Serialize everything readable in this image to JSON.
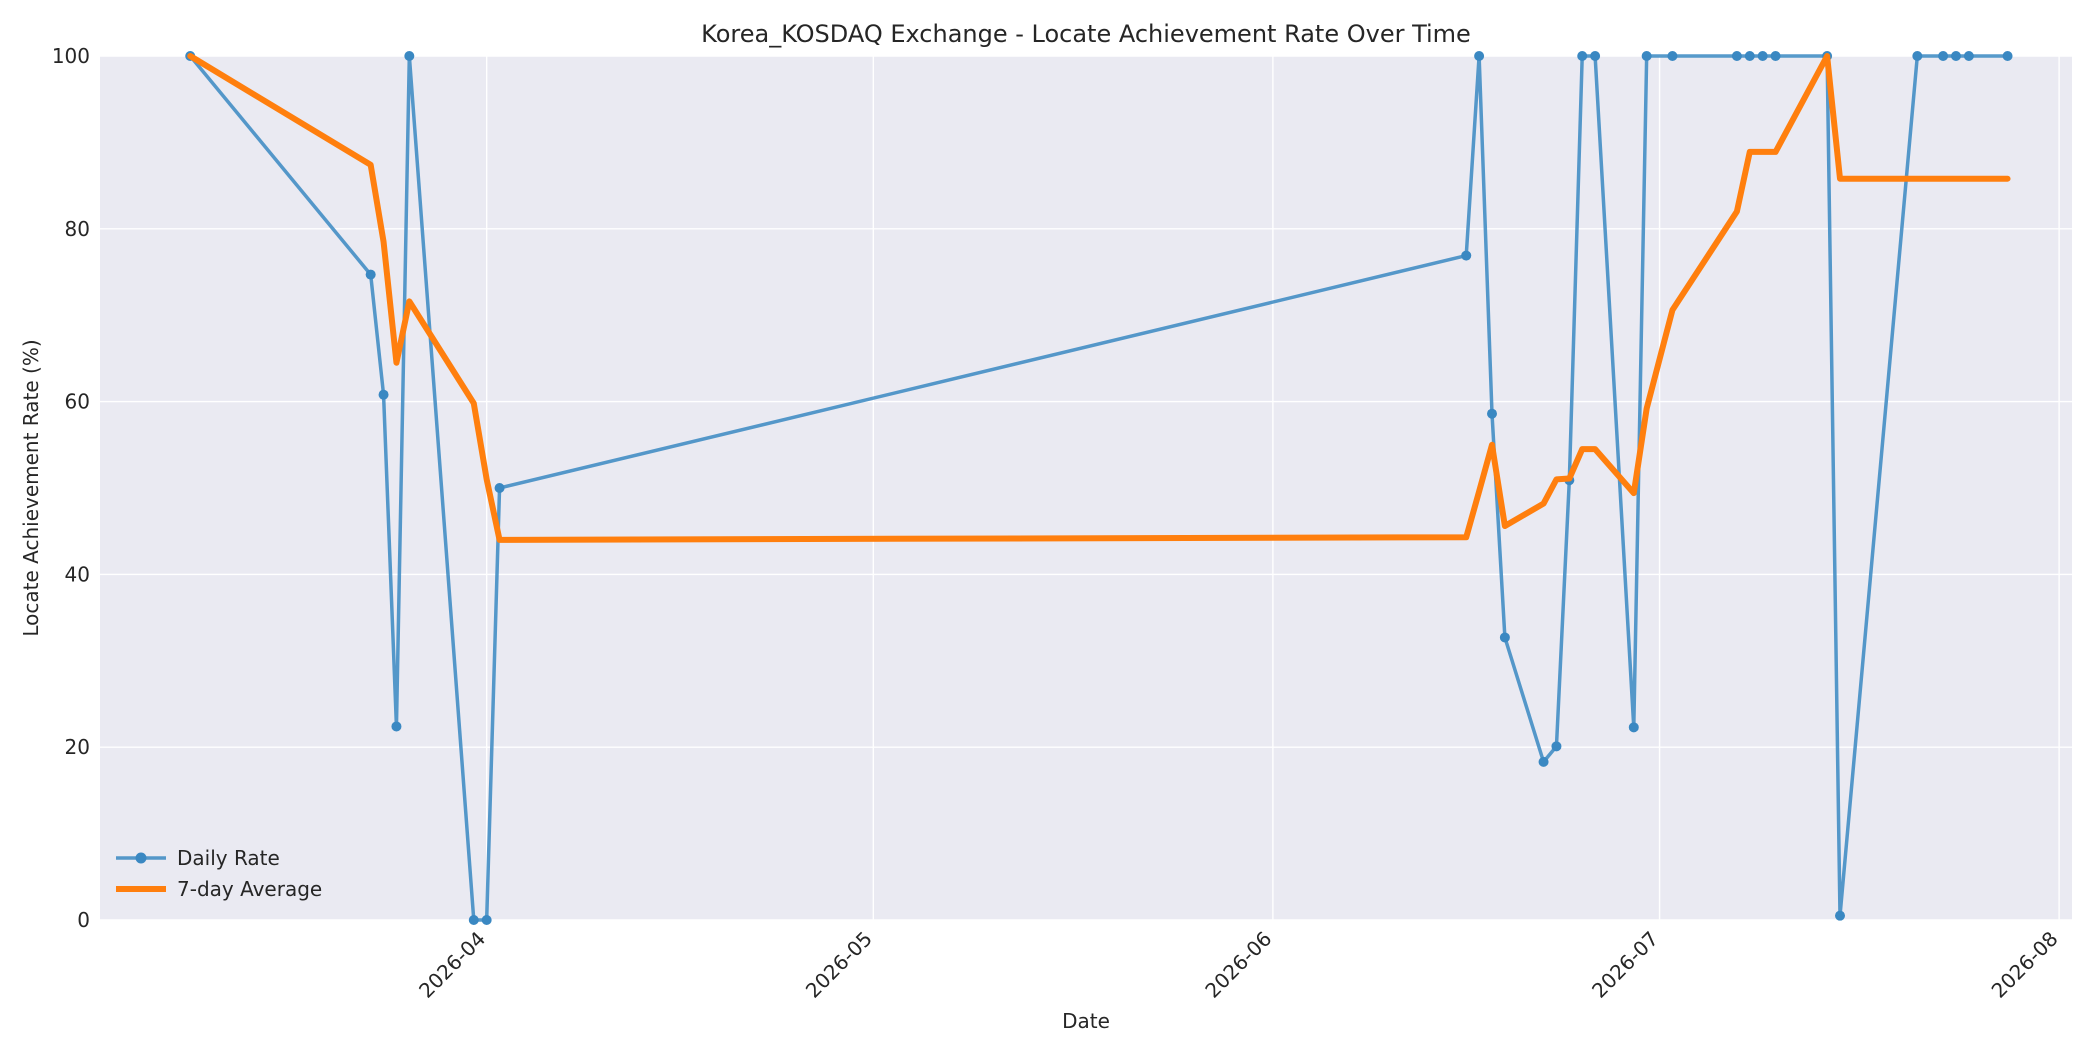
{
  "chart_data": {
    "type": "line",
    "title": "Korea_KOSDAQ Exchange - Locate Achievement Rate Over Time",
    "xlabel": "Date",
    "ylabel": "Locate Achievement Rate (%)",
    "ylim": [
      0,
      100
    ],
    "xlim": [
      "2026-03-02",
      "2026-08-02"
    ],
    "x_ticks": [
      "2026-04-01",
      "2026-05-01",
      "2026-06-01",
      "2026-07-01",
      "2026-08-01"
    ],
    "x_tick_labels": [
      "2026-04",
      "2026-05",
      "2026-06",
      "2026-07",
      "2026-08"
    ],
    "y_ticks": [
      0,
      20,
      40,
      60,
      80,
      100
    ],
    "y_tick_labels": [
      "0",
      "20",
      "40",
      "60",
      "80",
      "100"
    ],
    "grid": true,
    "legend_position": "lower-left",
    "series": [
      {
        "name": "Daily Rate",
        "color": "#3a88c2",
        "marker": "circle",
        "points": [
          [
            "2026-03-09",
            100
          ],
          [
            "2026-03-23",
            74.7
          ],
          [
            "2026-03-24",
            60.8
          ],
          [
            "2026-03-25",
            22.4
          ],
          [
            "2026-03-26",
            100
          ],
          [
            "2026-03-31",
            0
          ],
          [
            "2026-04-01",
            0
          ],
          [
            "2026-04-02",
            50
          ],
          [
            "2026-06-16",
            76.9
          ],
          [
            "2026-06-17",
            100
          ],
          [
            "2026-06-18",
            58.6
          ],
          [
            "2026-06-19",
            32.7
          ],
          [
            "2026-06-22",
            18.3
          ],
          [
            "2026-06-23",
            20.1
          ],
          [
            "2026-06-24",
            50.9
          ],
          [
            "2026-06-25",
            100
          ],
          [
            "2026-06-26",
            100
          ],
          [
            "2026-06-29",
            22.3
          ],
          [
            "2026-06-30",
            100
          ],
          [
            "2026-07-02",
            100
          ],
          [
            "2026-07-07",
            100
          ],
          [
            "2026-07-08",
            100
          ],
          [
            "2026-07-09",
            100
          ],
          [
            "2026-07-10",
            100
          ],
          [
            "2026-07-14",
            100
          ],
          [
            "2026-07-15",
            0.5
          ],
          [
            "2026-07-21",
            100
          ],
          [
            "2026-07-23",
            100
          ],
          [
            "2026-07-24",
            100
          ],
          [
            "2026-07-25",
            100
          ],
          [
            "2026-07-28",
            100
          ]
        ]
      },
      {
        "name": "7-day Average",
        "color": "#ff7f0e",
        "marker": "none",
        "points": [
          [
            "2026-03-09",
            100
          ],
          [
            "2026-03-23",
            87.4
          ],
          [
            "2026-03-24",
            78.5
          ],
          [
            "2026-03-25",
            64.5
          ],
          [
            "2026-03-26",
            71.6
          ],
          [
            "2026-03-31",
            59.8
          ],
          [
            "2026-04-01",
            51
          ],
          [
            "2026-04-02",
            44
          ],
          [
            "2026-06-16",
            44.3
          ],
          [
            "2026-06-17",
            49.6
          ],
          [
            "2026-06-18",
            55
          ],
          [
            "2026-06-19",
            45.6
          ],
          [
            "2026-06-22",
            48.2
          ],
          [
            "2026-06-23",
            51
          ],
          [
            "2026-06-24",
            51.1
          ],
          [
            "2026-06-25",
            54.5
          ],
          [
            "2026-06-26",
            54.5
          ],
          [
            "2026-06-29",
            49.4
          ],
          [
            "2026-06-30",
            59.2
          ],
          [
            "2026-07-02",
            70.6
          ],
          [
            "2026-07-07",
            82
          ],
          [
            "2026-07-08",
            88.9
          ],
          [
            "2026-07-09",
            88.9
          ],
          [
            "2026-07-10",
            88.9
          ],
          [
            "2026-07-14",
            100
          ],
          [
            "2026-07-15",
            85.8
          ],
          [
            "2026-07-21",
            85.8
          ],
          [
            "2026-07-23",
            85.8
          ],
          [
            "2026-07-24",
            85.8
          ],
          [
            "2026-07-25",
            85.8
          ],
          [
            "2026-07-28",
            85.8
          ]
        ]
      }
    ]
  }
}
